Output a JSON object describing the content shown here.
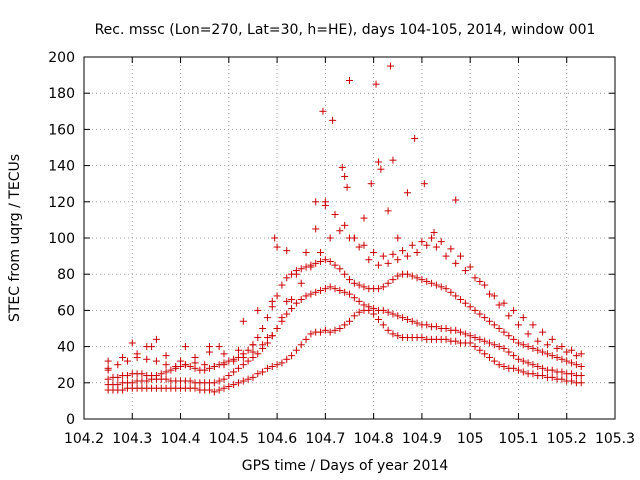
{
  "chart_data": {
    "type": "scatter",
    "title": "Rec. mssc (Lon=270, Lat=30, h=HE), days 104-105, 2014, window 001",
    "xlabel": "GPS time / Days of year 2014",
    "ylabel": "STEC from uqrg / TECUs",
    "xlim": [
      104.2,
      105.3
    ],
    "ylim": [
      0,
      200
    ],
    "xticks": [
      104.2,
      104.3,
      104.4,
      104.5,
      104.6,
      104.7,
      104.8,
      104.9,
      105.0,
      105.1,
      105.2,
      105.3
    ],
    "xtick_labels": [
      "104.2",
      "104.3",
      "104.4",
      "104.5",
      "104.6",
      "104.7",
      "104.8",
      "104.9",
      "105",
      "105.1",
      "105.2",
      "105.3"
    ],
    "yticks": [
      0,
      20,
      40,
      60,
      80,
      100,
      120,
      140,
      160,
      180,
      200
    ],
    "ytick_labels": [
      "0",
      "20",
      "40",
      "60",
      "80",
      "100",
      "120",
      "140",
      "160",
      "180",
      "200"
    ],
    "grid": true,
    "marker": "+",
    "color": "#cc0000",
    "series": [
      {
        "x": [
          104.25,
          104.26,
          104.27,
          104.28,
          104.29,
          104.3,
          104.31,
          104.32,
          104.33,
          104.34,
          104.35,
          104.36,
          104.37,
          104.38,
          104.39,
          104.4,
          104.41,
          104.42,
          104.43,
          104.44,
          104.45,
          104.46,
          104.47,
          104.48,
          104.49,
          104.5,
          104.51,
          104.52,
          104.53,
          104.54,
          104.55,
          104.56,
          104.57,
          104.58,
          104.59,
          104.6,
          104.61,
          104.62,
          104.63,
          104.64,
          104.65,
          104.66,
          104.67,
          104.68,
          104.69,
          104.7,
          104.71,
          104.72,
          104.73,
          104.74,
          104.75,
          104.76,
          104.77,
          104.78,
          104.79,
          104.8,
          104.81,
          104.82,
          104.83,
          104.84,
          104.85,
          104.86,
          104.87,
          104.88,
          104.89,
          104.9,
          104.91,
          104.92,
          104.93,
          104.94,
          104.95,
          104.96,
          104.97,
          104.98,
          104.99,
          105.0,
          105.01,
          105.02,
          105.03,
          105.04,
          105.05,
          105.06,
          105.07,
          105.08,
          105.09,
          105.1,
          105.11,
          105.12,
          105.13,
          105.14,
          105.15,
          105.16,
          105.17,
          105.18,
          105.19,
          105.2,
          105.21,
          105.22,
          105.23
        ],
        "y": [
          16,
          16,
          16,
          16,
          17,
          17,
          17,
          17,
          17,
          17,
          17,
          17,
          17,
          17,
          17,
          17,
          17,
          17,
          17,
          16,
          16,
          16,
          15,
          16,
          17,
          18,
          19,
          20,
          21,
          22,
          23,
          25,
          26,
          28,
          29,
          30,
          31,
          33,
          35,
          38,
          41,
          44,
          47,
          48,
          48,
          49,
          48,
          49,
          50,
          52,
          54,
          57,
          59,
          60,
          60,
          58,
          55,
          52,
          49,
          47,
          46,
          45,
          45,
          45,
          45,
          45,
          44,
          44,
          44,
          44,
          44,
          43,
          43,
          42,
          42,
          42,
          40,
          38,
          36,
          34,
          32,
          30,
          29,
          28,
          28,
          27,
          26,
          25,
          25,
          24,
          24,
          23,
          23,
          22,
          22,
          21,
          21,
          20,
          20
        ]
      },
      {
        "x": [
          104.25,
          104.26,
          104.27,
          104.28,
          104.29,
          104.3,
          104.31,
          104.32,
          104.33,
          104.34,
          104.35,
          104.36,
          104.37,
          104.38,
          104.39,
          104.4,
          104.41,
          104.42,
          104.43,
          104.44,
          104.45,
          104.46,
          104.47,
          104.48,
          104.49,
          104.5,
          104.51,
          104.52,
          104.53,
          104.54,
          104.55,
          104.56,
          104.57,
          104.58,
          104.59,
          104.6,
          104.61,
          104.62,
          104.63,
          104.64,
          104.65,
          104.66,
          104.67,
          104.68,
          104.69,
          104.7,
          104.71,
          104.72,
          104.73,
          104.74,
          104.75,
          104.76,
          104.77,
          104.78,
          104.79,
          104.8,
          104.81,
          104.82,
          104.83,
          104.84,
          104.85,
          104.86,
          104.87,
          104.88,
          104.89,
          104.9,
          104.91,
          104.92,
          104.93,
          104.94,
          104.95,
          104.96,
          104.97,
          104.98,
          104.99,
          105.0,
          105.01,
          105.02,
          105.03,
          105.04,
          105.05,
          105.06,
          105.07,
          105.08,
          105.09,
          105.1,
          105.11,
          105.12,
          105.13,
          105.14,
          105.15,
          105.16,
          105.17,
          105.18,
          105.19,
          105.2,
          105.21,
          105.22,
          105.23
        ],
        "y": [
          19,
          19,
          19,
          20,
          20,
          20,
          21,
          21,
          21,
          22,
          22,
          22,
          22,
          21,
          21,
          21,
          21,
          21,
          20,
          20,
          20,
          20,
          20,
          21,
          22,
          24,
          26,
          28,
          30,
          32,
          34,
          36,
          39,
          42,
          46,
          50,
          54,
          58,
          61,
          64,
          66,
          68,
          69,
          70,
          71,
          72,
          73,
          72,
          71,
          70,
          69,
          67,
          65,
          63,
          62,
          61,
          60,
          60,
          59,
          58,
          57,
          56,
          55,
          54,
          53,
          52,
          52,
          51,
          51,
          50,
          50,
          49,
          49,
          48,
          47,
          46,
          45,
          44,
          43,
          42,
          41,
          40,
          39,
          37,
          35,
          33,
          32,
          31,
          30,
          29,
          28,
          27,
          27,
          26,
          26,
          25,
          25,
          24,
          24
        ]
      },
      {
        "x": [
          104.25,
          104.26,
          104.27,
          104.28,
          104.29,
          104.3,
          104.31,
          104.32,
          104.33,
          104.34,
          104.35,
          104.36,
          104.37,
          104.38,
          104.39,
          104.4,
          104.41,
          104.42,
          104.43,
          104.44,
          104.45,
          104.46,
          104.47,
          104.48,
          104.49,
          104.5,
          104.51,
          104.52,
          104.53,
          104.54,
          104.55,
          104.56,
          104.57,
          104.58,
          104.59,
          104.6,
          104.61,
          104.62,
          104.63,
          104.64,
          104.65,
          104.66,
          104.67,
          104.68,
          104.69,
          104.7,
          104.71,
          104.72,
          104.73,
          104.74,
          104.75,
          104.76,
          104.77,
          104.78,
          104.79,
          104.8,
          104.81,
          104.82,
          104.83,
          104.84,
          104.85,
          104.86,
          104.87,
          104.88,
          104.89,
          104.9,
          104.91,
          104.92,
          104.93,
          104.94,
          104.95,
          104.96,
          104.97,
          104.98,
          104.99,
          105.0,
          105.01,
          105.02,
          105.03,
          105.04,
          105.05,
          105.06,
          105.07,
          105.08,
          105.09,
          105.1,
          105.11,
          105.12,
          105.13,
          105.14,
          105.15,
          105.16,
          105.17,
          105.18,
          105.19,
          105.2,
          105.21,
          105.22,
          105.23
        ],
        "y": [
          22,
          23,
          23,
          24,
          24,
          25,
          25,
          25,
          24,
          24,
          24,
          25,
          26,
          27,
          28,
          29,
          30,
          29,
          28,
          27,
          27,
          28,
          29,
          30,
          31,
          32,
          33,
          34,
          36,
          38,
          41,
          45,
          50,
          56,
          62,
          68,
          74,
          78,
          80,
          82,
          83,
          84,
          85,
          86,
          87,
          88,
          87,
          85,
          83,
          80,
          77,
          75,
          74,
          73,
          72,
          72,
          72,
          73,
          75,
          77,
          79,
          80,
          80,
          79,
          78,
          77,
          76,
          75,
          74,
          73,
          72,
          70,
          68,
          66,
          64,
          62,
          60,
          58,
          56,
          54,
          52,
          50,
          48,
          46,
          44,
          42,
          41,
          40,
          39,
          38,
          37,
          36,
          35,
          34,
          33,
          32,
          31,
          30,
          29
        ]
      },
      {
        "x": [
          104.25,
          104.27,
          104.29,
          104.31,
          104.33,
          104.35,
          104.37,
          104.39,
          104.41,
          104.43,
          104.45,
          104.47,
          104.49,
          104.51,
          104.53,
          104.55,
          104.57,
          104.59,
          104.61,
          104.63,
          104.65,
          104.67,
          104.69,
          104.71,
          104.73,
          104.75,
          104.77,
          104.79,
          104.81,
          104.83,
          104.85,
          104.87,
          104.89,
          104.91,
          104.93,
          104.95,
          104.97,
          104.99,
          105.01,
          105.03,
          105.05,
          105.07,
          105.09,
          105.11,
          105.13,
          105.15,
          105.17,
          105.19,
          105.21,
          105.23
        ],
        "y": [
          28,
          30,
          32,
          34,
          33,
          32,
          30,
          29,
          30,
          31,
          30,
          29,
          30,
          32,
          34,
          37,
          41,
          46,
          56,
          66,
          75,
          84,
          92,
          100,
          104,
          100,
          95,
          88,
          85,
          86,
          88,
          90,
          92,
          96,
          95,
          90,
          86,
          82,
          78,
          74,
          68,
          64,
          60,
          56,
          52,
          48,
          44,
          40,
          38,
          36
        ]
      },
      {
        "x": [
          104.25,
          104.28,
          104.31,
          104.34,
          104.37,
          104.4,
          104.43,
          104.46,
          104.49,
          104.52,
          104.55,
          104.58,
          104.6,
          104.62,
          104.64,
          104.66,
          104.68,
          104.7,
          104.72,
          104.74,
          104.76,
          104.78,
          104.8,
          104.82,
          104.84,
          104.86,
          104.88,
          104.9,
          104.92,
          104.94,
          104.96,
          104.98,
          105.0,
          105.02,
          105.04,
          105.06,
          105.08,
          105.1,
          105.12,
          105.14,
          105.16,
          105.18,
          105.2,
          105.22
        ],
        "y": [
          32,
          34,
          36,
          40,
          35,
          32,
          34,
          37,
          36,
          38,
          41,
          45,
          50,
          65,
          80,
          92,
          105,
          118,
          113,
          107,
          100,
          96,
          92,
          90,
          91,
          93,
          96,
          98,
          100,
          98,
          94,
          90,
          84,
          76,
          69,
          63,
          57,
          52,
          47,
          43,
          41,
          39,
          37,
          35
        ]
      },
      {
        "x": [
          104.25,
          104.3,
          104.33,
          104.35,
          104.41,
          104.46,
          104.48,
          104.53,
          104.56,
          104.59,
          104.595,
          104.6,
          104.62,
          104.68,
          104.695,
          104.7,
          104.715,
          104.735,
          104.74,
          104.745,
          104.76,
          104.78,
          104.795,
          104.805,
          104.81,
          104.815,
          104.83,
          104.84,
          104.85,
          104.87,
          104.885,
          104.905,
          104.925,
          104.97
        ],
        "y": [
          27,
          42,
          40,
          44,
          40,
          40,
          40,
          54,
          60,
          65,
          100,
          95,
          93,
          120,
          170,
          120,
          165,
          139,
          134,
          128,
          100,
          111,
          130,
          185,
          142,
          138,
          115,
          143,
          100,
          125,
          155,
          130,
          103,
          121
        ]
      },
      {
        "x": [
          104.75,
          104.835
        ],
        "y": [
          187,
          195
        ]
      }
    ]
  }
}
